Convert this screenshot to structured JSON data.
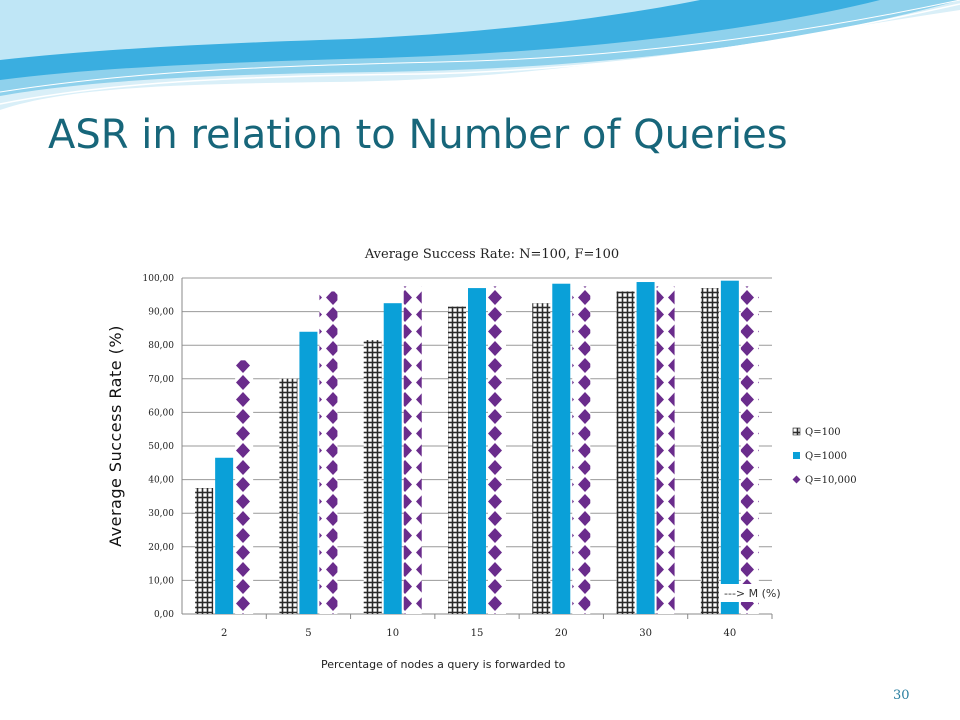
{
  "slide": {
    "title": "ASR in relation to Number of Queries",
    "page_number": "30"
  },
  "colors": {
    "title": "#17667a",
    "q100": "#2a2a2a",
    "q1000": "#0aa0d8",
    "q10000": "#6a2c8c",
    "wave_light": "#cfeaf5",
    "wave_mid": "#6cc3e4",
    "wave_dark": "#1f9ad0"
  },
  "chart_data": {
    "type": "bar",
    "title": "Average Success Rate: N=100, F=100",
    "ylabel": "Average  Success  Rate  (%)",
    "xlabel": "Percentage of nodes a query is forwarded to",
    "note": "---> M (%)",
    "categories": [
      "2",
      "5",
      "10",
      "15",
      "20",
      "30",
      "40"
    ],
    "yticks": [
      "0,00",
      "10,00",
      "20,00",
      "30,00",
      "40,00",
      "50,00",
      "60,00",
      "70,00",
      "80,00",
      "90,00",
      "100,00"
    ],
    "ylim": [
      0,
      100
    ],
    "grid": true,
    "legend_position": "right",
    "series": [
      {
        "name": "Q=100",
        "values": [
          37.5,
          70,
          81.5,
          91.5,
          92.5,
          96,
          97
        ]
      },
      {
        "name": "Q=1000",
        "values": [
          46.5,
          84,
          92.5,
          97,
          98.3,
          98.8,
          99.2
        ]
      },
      {
        "name": "Q=10,000",
        "values": [
          75.5,
          96,
          97.5,
          97.5,
          97.5,
          97.5,
          97.5
        ]
      }
    ]
  }
}
